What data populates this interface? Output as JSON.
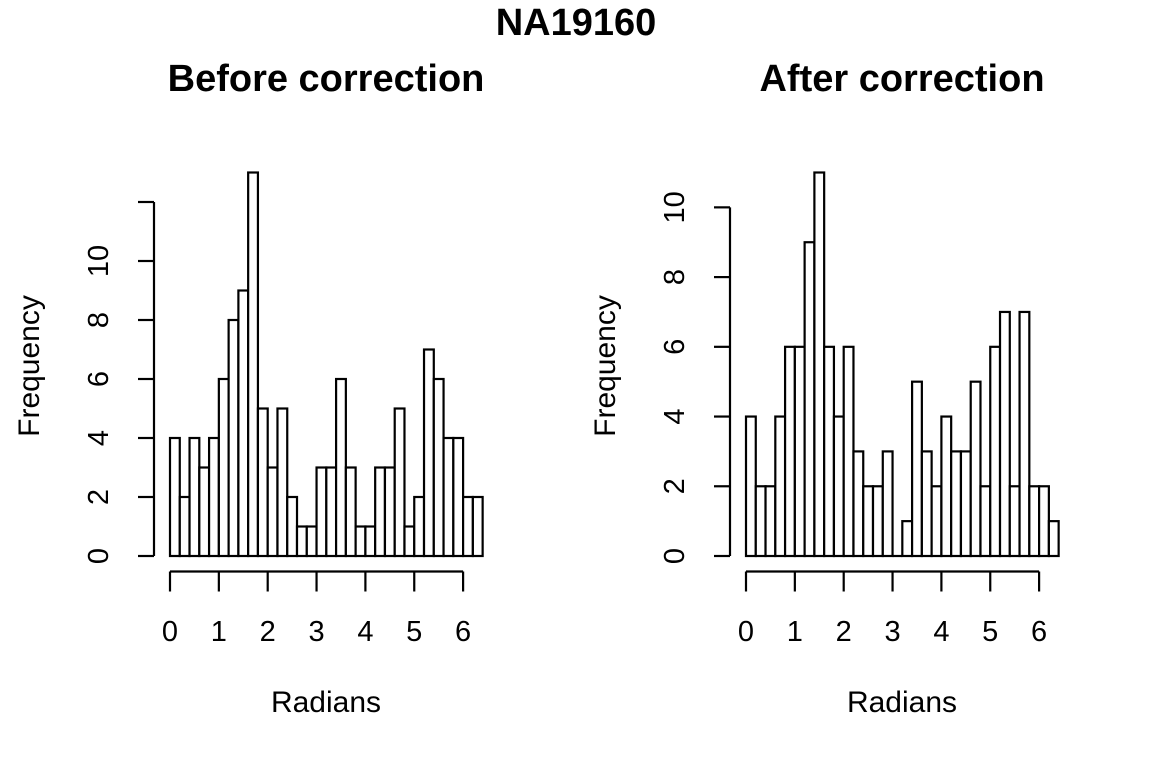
{
  "main_title": "NA19160",
  "chart_data": [
    {
      "type": "bar",
      "subtype": "histogram",
      "title": "Before correction",
      "xlabel": "Radians",
      "ylabel": "Frequency",
      "bin_start": 0,
      "bin_width": 0.2,
      "xlim": [
        0,
        6.4
      ],
      "ylim": [
        0,
        13
      ],
      "counts": [
        4,
        2,
        4,
        3,
        4,
        6,
        8,
        9,
        13,
        5,
        3,
        5,
        2,
        1,
        1,
        3,
        3,
        6,
        3,
        1,
        1,
        3,
        3,
        5,
        1,
        2,
        7,
        6,
        4,
        4,
        2,
        2
      ],
      "x_ticks": [
        0,
        1,
        2,
        3,
        4,
        5,
        6
      ],
      "x_tick_labels": [
        "0",
        "1",
        "2",
        "3",
        "4",
        "5",
        "6"
      ],
      "y_ticks": [
        0,
        2,
        4,
        6,
        8,
        10
      ],
      "y_tick_labels": [
        "0",
        "2",
        "4",
        "6",
        "8",
        "10"
      ],
      "unlabeled_y_ticks": [
        12
      ],
      "grid": false,
      "legend": null,
      "bar_fill": "#ffffff",
      "bar_stroke": "#000000"
    },
    {
      "type": "bar",
      "subtype": "histogram",
      "title": "After correction",
      "xlabel": "Radians",
      "ylabel": "Frequency",
      "bin_start": 0,
      "bin_width": 0.2,
      "xlim": [
        0,
        6.4
      ],
      "ylim": [
        0,
        11
      ],
      "counts": [
        4,
        2,
        2,
        4,
        6,
        6,
        9,
        11,
        6,
        4,
        6,
        3,
        2,
        2,
        3,
        0,
        1,
        5,
        3,
        2,
        4,
        3,
        3,
        5,
        2,
        6,
        7,
        2,
        7,
        2,
        2,
        1
      ],
      "x_ticks": [
        0,
        1,
        2,
        3,
        4,
        5,
        6
      ],
      "x_tick_labels": [
        "0",
        "1",
        "2",
        "3",
        "4",
        "5",
        "6"
      ],
      "y_ticks": [
        0,
        2,
        4,
        6,
        8,
        10
      ],
      "y_tick_labels": [
        "0",
        "2",
        "4",
        "6",
        "8",
        "10"
      ],
      "unlabeled_y_ticks": [],
      "grid": false,
      "legend": null,
      "bar_fill": "#ffffff",
      "bar_stroke": "#000000"
    }
  ]
}
